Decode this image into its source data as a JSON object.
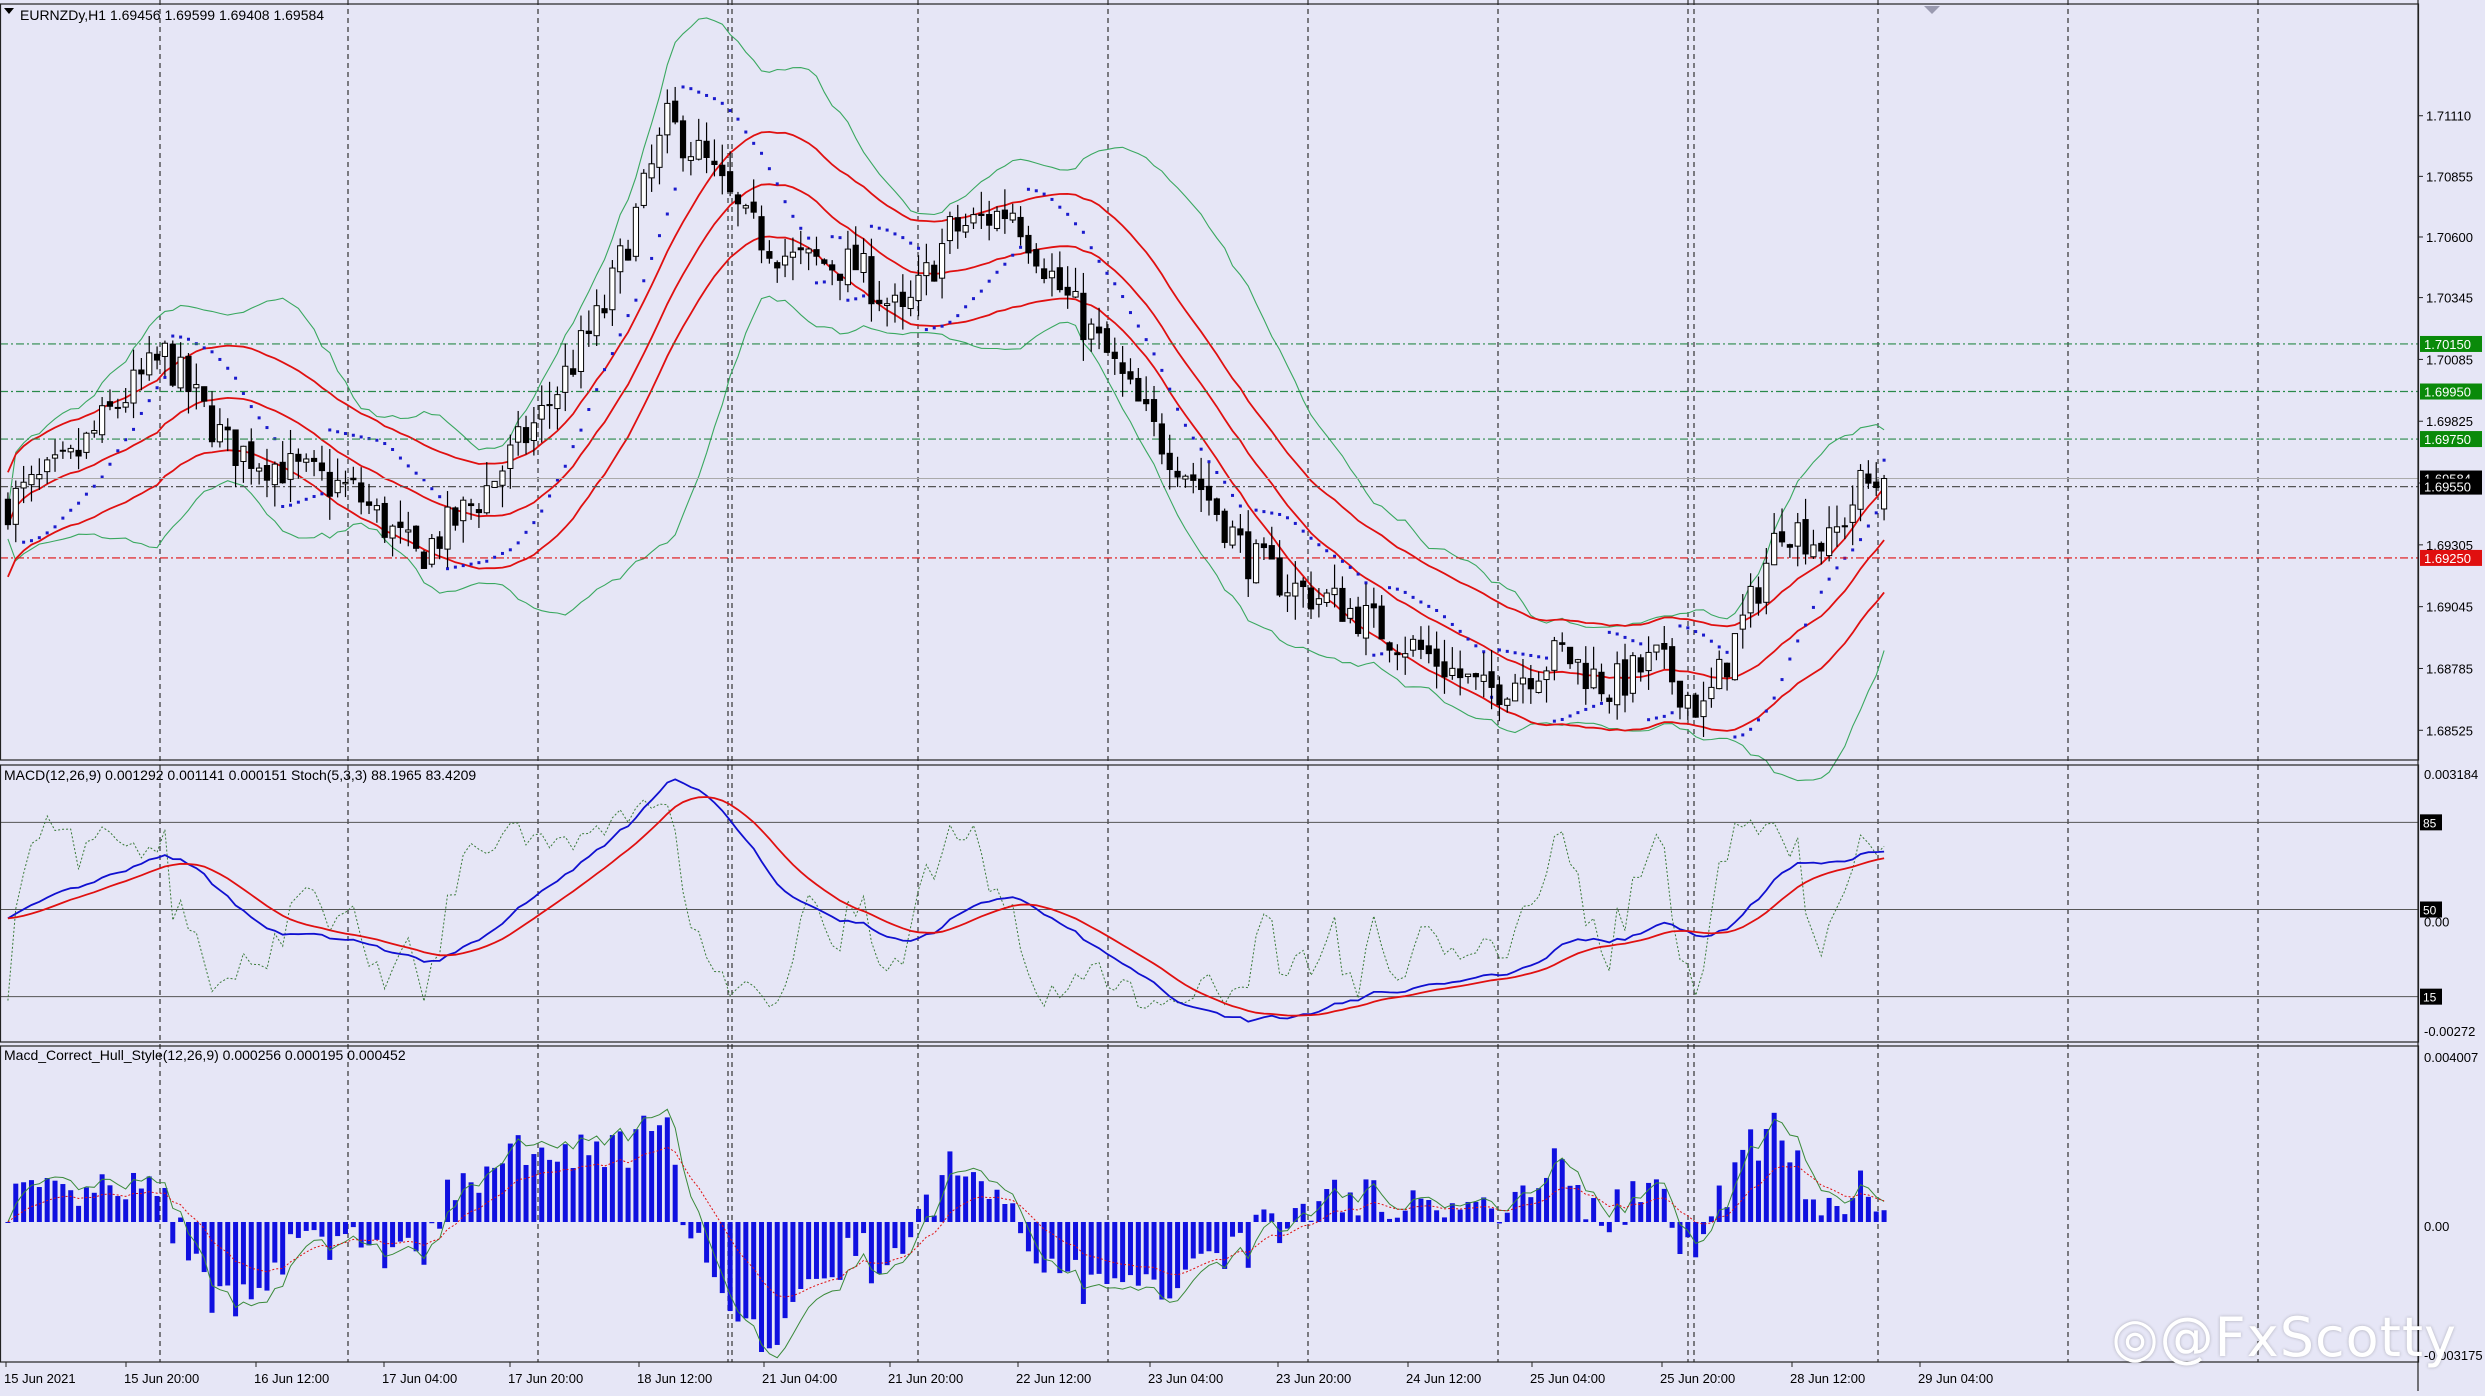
{
  "main": {
    "header": "EURNZDy,H1  1.69456 1.69599 1.69408 1.69584",
    "price_labels": [
      "1.71110",
      "1.70855",
      "1.70600",
      "1.70345",
      "1.70085",
      "1.69825",
      "1.69565",
      "1.69305",
      "1.69045",
      "1.68785",
      "1.68525"
    ],
    "levels": [
      {
        "price": "1.70150",
        "color": "#0a8a0a"
      },
      {
        "price": "1.69950",
        "color": "#0a8a0a"
      },
      {
        "price": "1.69750",
        "color": "#0a8a0a"
      },
      {
        "price": "1.69584",
        "color": "#000000"
      },
      {
        "price": "1.69550",
        "color": "#000000"
      },
      {
        "price": "1.69250",
        "color": "#e01010"
      }
    ]
  },
  "sub1": {
    "header": "MACD(12,26,9) 0.001292 0.001141 0.000151  Stoch(5,3,3) 88.1965 83.4209",
    "labels": [
      "0.003184",
      "0.00",
      "-0.00272"
    ],
    "levels": [
      "85",
      "50",
      "15"
    ]
  },
  "sub2": {
    "header": "Macd_Correct_Hull_Style(12,26,9) 0.000256 0.000195 0.000452",
    "labels": [
      "0.004007",
      "0.00",
      "-0.003175"
    ]
  },
  "time_labels": [
    "15 Jun 2021",
    "15 Jun 20:00",
    "16 Jun 12:00",
    "17 Jun 04:00",
    "17 Jun 20:00",
    "18 Jun 12:00",
    "21 Jun 04:00",
    "21 Jun 20:00",
    "22 Jun 12:00",
    "23 Jun 04:00",
    "23 Jun 20:00",
    "24 Jun 12:00",
    "25 Jun 04:00",
    "25 Jun 20:00",
    "28 Jun 12:00",
    "29 Jun 04:00"
  ],
  "watermark": "@FxScotty",
  "colors": {
    "background": "#e6e6f6",
    "candle": "#000000",
    "bollinger": "#3aa860",
    "envelope": "#e01010",
    "sar": "#1a1acc",
    "macd_main": "#1010d0",
    "macd_signal": "#e01010",
    "hist": "#1010e0"
  },
  "chart_data": {
    "type": "candlestick",
    "symbol": "EURNZDy",
    "timeframe": "H1",
    "ohlc_last": {
      "open": 1.69456,
      "high": 1.69599,
      "low": 1.69408,
      "close": 1.69584
    },
    "y_range": [
      1.684,
      1.7158
    ],
    "close_path": [
      [
        0,
        1.6948
      ],
      [
        8,
        1.6965
      ],
      [
        14,
        1.699
      ],
      [
        20,
        1.701
      ],
      [
        28,
        1.6972
      ],
      [
        36,
        1.6962
      ],
      [
        44,
        1.6953
      ],
      [
        52,
        1.6925
      ],
      [
        60,
        1.695
      ],
      [
        68,
        1.6985
      ],
      [
        76,
        1.703
      ],
      [
        84,
        1.7108
      ],
      [
        88,
        1.7095
      ],
      [
        94,
        1.7065
      ],
      [
        100,
        1.705
      ],
      [
        108,
        1.7048
      ],
      [
        114,
        1.7025
      ],
      [
        120,
        1.7062
      ],
      [
        128,
        1.7072
      ],
      [
        134,
        1.7038
      ],
      [
        140,
        1.701
      ],
      [
        146,
        1.6978
      ],
      [
        152,
        1.6955
      ],
      [
        158,
        1.6925
      ],
      [
        164,
        1.6912
      ],
      [
        170,
        1.6905
      ],
      [
        176,
        1.6893
      ],
      [
        182,
        1.6882
      ],
      [
        188,
        1.6868
      ],
      [
        194,
        1.6878
      ],
      [
        198,
        1.6885
      ],
      [
        204,
        1.687
      ],
      [
        210,
        1.6882
      ],
      [
        216,
        1.686
      ],
      [
        222,
        1.6905
      ],
      [
        226,
        1.694
      ],
      [
        232,
        1.693
      ],
      [
        236,
        1.6955
      ],
      [
        240,
        1.6958
      ]
    ],
    "bars_total": 240
  }
}
